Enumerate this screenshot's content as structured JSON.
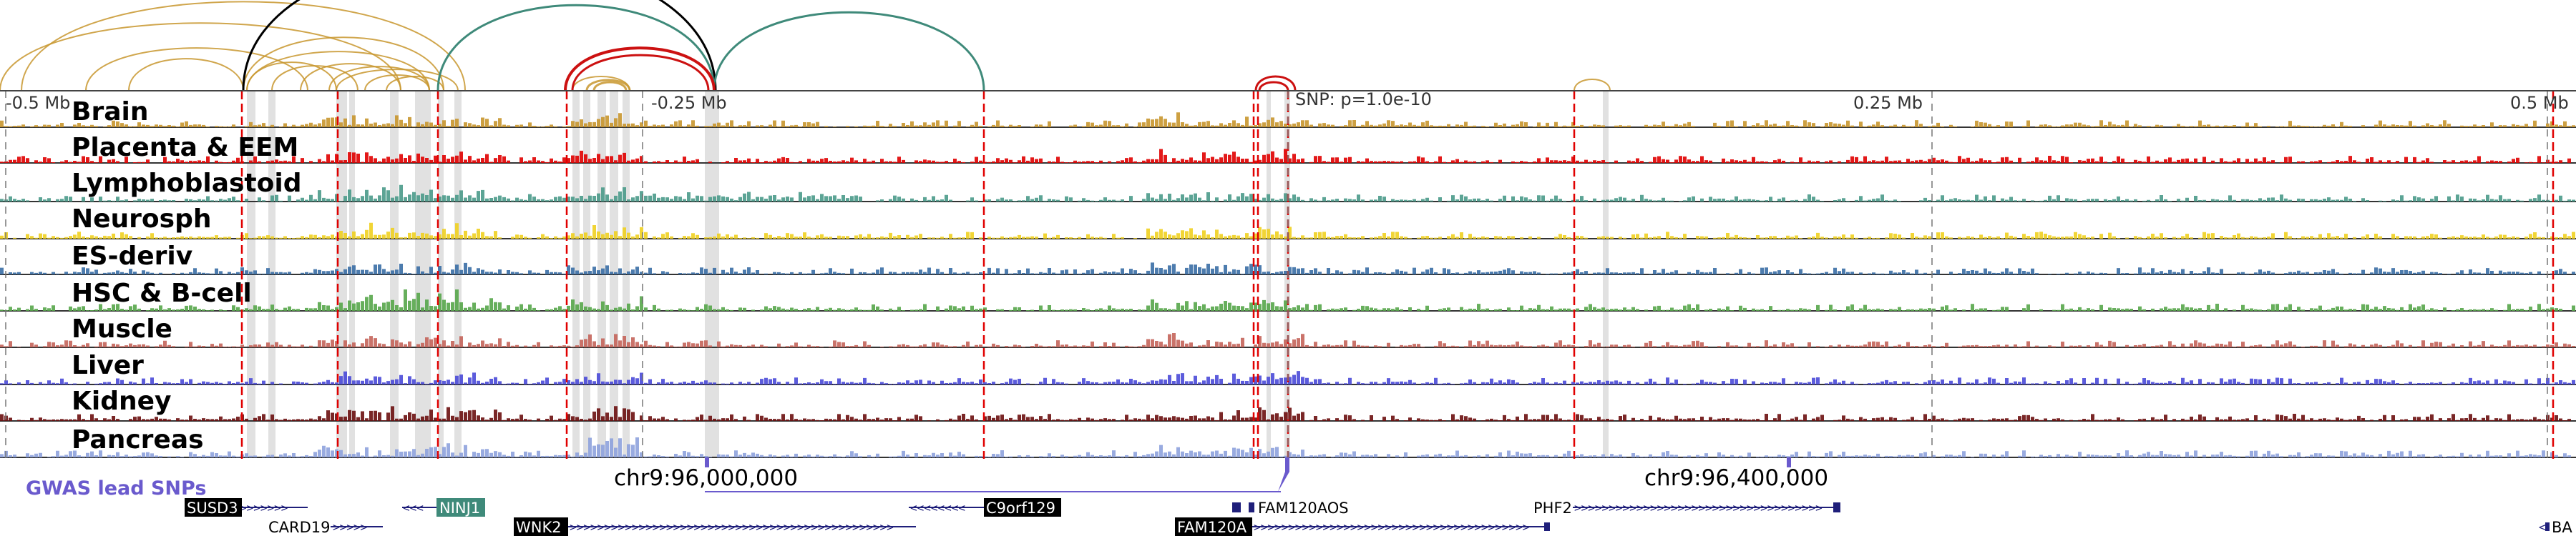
{
  "colors": {
    "arc_default": "#c8962e",
    "arc_black": "#000000",
    "arc_teal": "#3f8a7a",
    "arc_red": "#cc1111",
    "highlight_red": "#e00000",
    "highlight_gray": "#c8c8c8",
    "gene_bar": "#1f1f7a"
  },
  "ruler": {
    "left_label": "-0.5 Mb",
    "left_mid_label": "-0.25 Mb",
    "snp_label": "SNP: p=1.0e-10",
    "right_mid_label": "0.25 Mb",
    "right_label": "0.5 Mb"
  },
  "tracks": [
    {
      "label": "Brain",
      "color": "#c8962e"
    },
    {
      "label": "Placenta & EEM",
      "color": "#e00000"
    },
    {
      "label": "Lymphoblastoid",
      "color": "#4a9a8a"
    },
    {
      "label": "Neurosph",
      "color": "#f0d020"
    },
    {
      "label": "ES-deriv",
      "color": "#3a6ea5"
    },
    {
      "label": "HSC & B-cell",
      "color": "#56a64a"
    },
    {
      "label": "Muscle",
      "color": "#c4645a"
    },
    {
      "label": "Liver",
      "color": "#4a4ad8"
    },
    {
      "label": "Kidney",
      "color": "#6b0f0f"
    },
    {
      "label": "Pancreas",
      "color": "#8ea2dd"
    }
  ],
  "gwas": {
    "label": "GWAS lead SNPs"
  },
  "coordinates": [
    "chr9:96,000,000",
    "chr9:96,400,000"
  ],
  "genes": [
    {
      "name": "SUSD3",
      "boxed": true
    },
    {
      "name": "CARD19",
      "boxed": false
    },
    {
      "name": "NINJ1",
      "boxed": true,
      "box_color": "#3f8a7a"
    },
    {
      "name": "WNK2",
      "boxed": true
    },
    {
      "name": "C9orf129",
      "boxed": true
    },
    {
      "name": "FAM120A",
      "boxed": true
    },
    {
      "name": "FAM120AOS",
      "boxed": false
    },
    {
      "name": "PHF2",
      "boxed": false
    },
    {
      "name": "BA",
      "boxed": false
    }
  ]
}
